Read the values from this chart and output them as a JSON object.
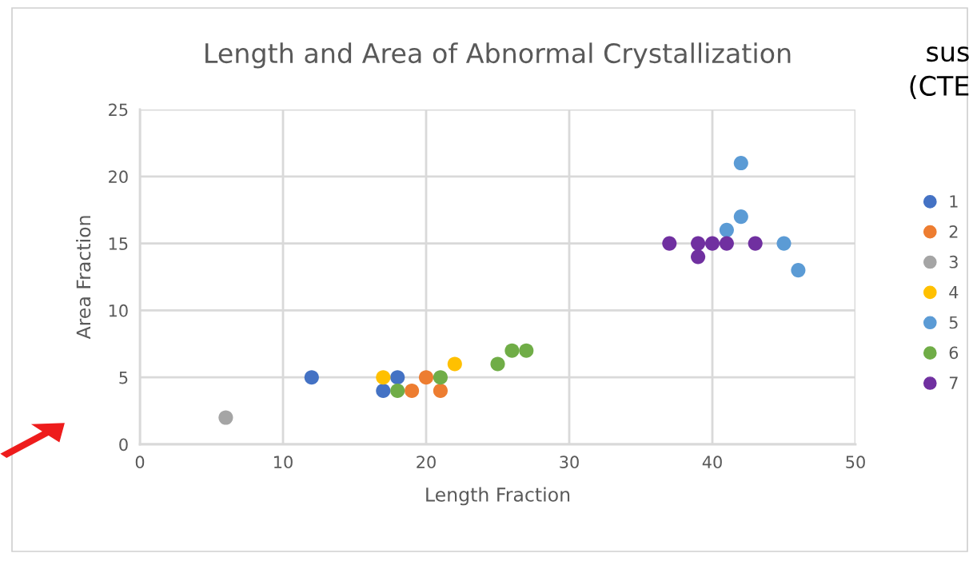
{
  "chart_data": {
    "type": "scatter",
    "title": "Length and Area of Abnormal Crystallization",
    "xlabel": "Length Fraction",
    "ylabel": "Area Fraction",
    "series": [
      {
        "name": "1",
        "color": "#4472c4",
        "x": [
          12,
          17,
          18
        ],
        "values": [
          5,
          4,
          5
        ]
      },
      {
        "name": "2",
        "color": "#ed7d31",
        "x": [
          20,
          19,
          21
        ],
        "values": [
          5,
          4,
          4
        ]
      },
      {
        "name": "3",
        "color": "#a5a5a5",
        "x": [
          6
        ],
        "values": [
          2
        ]
      },
      {
        "name": "4",
        "color": "#ffc000",
        "x": [
          17,
          22
        ],
        "values": [
          5,
          6
        ]
      },
      {
        "name": "5",
        "color": "#5b9bd5",
        "x": [
          42,
          42,
          41,
          45,
          46
        ],
        "values": [
          21,
          17,
          16,
          15,
          13
        ]
      },
      {
        "name": "6",
        "color": "#70ad47",
        "x": [
          18,
          21,
          25,
          26,
          27
        ],
        "values": [
          4,
          5,
          6,
          7,
          7
        ]
      },
      {
        "name": "7",
        "color": "#7030a0",
        "x": [
          37,
          39,
          39,
          40,
          41,
          43
        ],
        "values": [
          15,
          15,
          14,
          15,
          15,
          15
        ]
      }
    ],
    "xlim": [
      0,
      50
    ],
    "xticks": [
      0,
      10,
      20,
      30,
      40,
      50
    ],
    "ylim": [
      0,
      25
    ],
    "yticks": [
      0,
      5,
      10,
      15,
      20,
      25
    ],
    "grid": true,
    "legend": "right",
    "marker": "circle",
    "annotations": [
      "sus",
      "(CTE"
    ]
  }
}
